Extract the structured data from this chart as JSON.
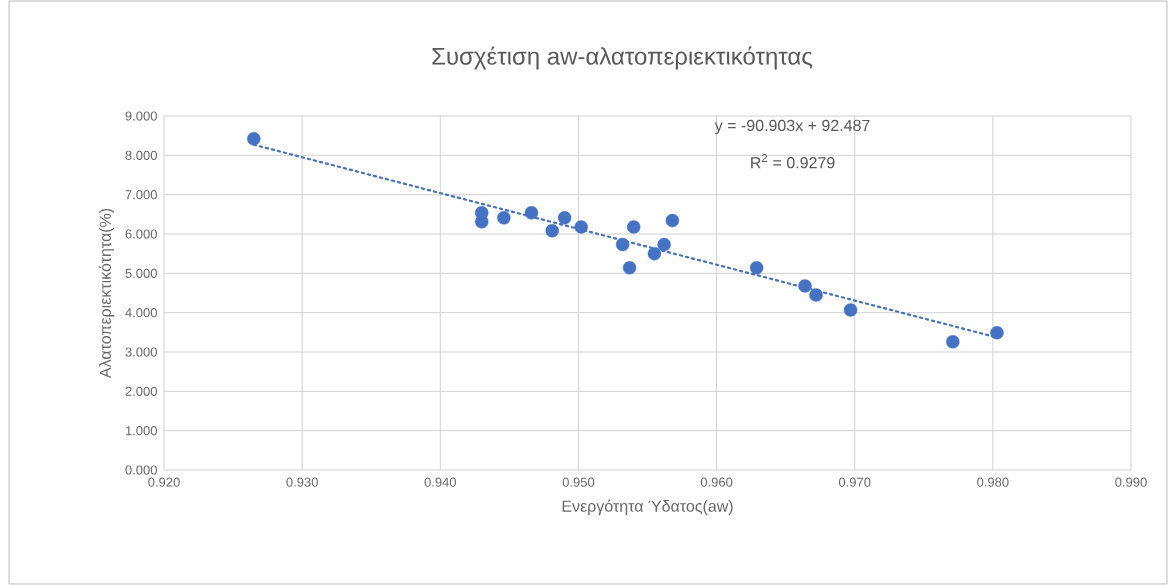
{
  "chart_data": {
    "type": "scatter",
    "title": "Συσχέτιση aw-αλατοπεριεκτικότητας",
    "xlabel": "Ενεργότητα Ύδατος(aw)",
    "ylabel": "Αλατοπεριεκτικότητα(%)",
    "annotations": [
      "y = -90.903x + 92.487",
      "R$^{2}$ = 0.9279"
    ],
    "series": [
      {
        "color": "#4472c4",
        "marker": "circle",
        "x": [
          0.9265,
          0.943,
          0.943,
          0.9446,
          0.9466,
          0.9481,
          0.949,
          0.9502,
          0.9532,
          0.9537,
          0.954,
          0.9555,
          0.9562,
          0.9568,
          0.9629,
          0.9664,
          0.9672,
          0.9697,
          0.9771,
          0.9803
        ],
        "values": [
          8.42,
          6.54,
          6.31,
          6.41,
          6.54,
          6.08,
          6.41,
          6.18,
          5.73,
          5.14,
          6.18,
          5.5,
          5.73,
          6.34,
          5.14,
          4.68,
          4.45,
          4.07,
          3.26,
          3.49
        ]
      },
      {
        "type": "line",
        "color": "#4472c4",
        "marker": "none",
        "line_style": "dotted",
        "x": [
          0.9265,
          0.9803
        ],
        "values": [
          8.27,
          3.37
        ]
      }
    ],
    "xlim": [
      0.92,
      0.99
    ],
    "ylim": [
      0,
      9
    ],
    "xticks": [
      {
        "value": 0.92,
        "label": "0.920"
      },
      {
        "value": 0.93,
        "label": "0.930"
      },
      {
        "value": 0.94,
        "label": "0.940"
      },
      {
        "value": 0.95,
        "label": "0.950"
      },
      {
        "value": 0.96,
        "label": "0.960"
      },
      {
        "value": 0.97,
        "label": "0.970"
      },
      {
        "value": 0.98,
        "label": "0.980"
      },
      {
        "value": 0.99,
        "label": "0.990"
      }
    ],
    "yticks": [
      {
        "value": 0,
        "label": "0.000"
      },
      {
        "value": 1,
        "label": "1.000"
      },
      {
        "value": 2,
        "label": "2.000"
      },
      {
        "value": 3,
        "label": "3.000"
      },
      {
        "value": 4,
        "label": "4.000"
      },
      {
        "value": 5,
        "label": "5.000"
      },
      {
        "value": 6,
        "label": "6.000"
      },
      {
        "value": 7,
        "label": "7.000"
      },
      {
        "value": 8,
        "label": "8.000"
      },
      {
        "value": 9,
        "label": "9.000"
      }
    ],
    "grid": true
  }
}
